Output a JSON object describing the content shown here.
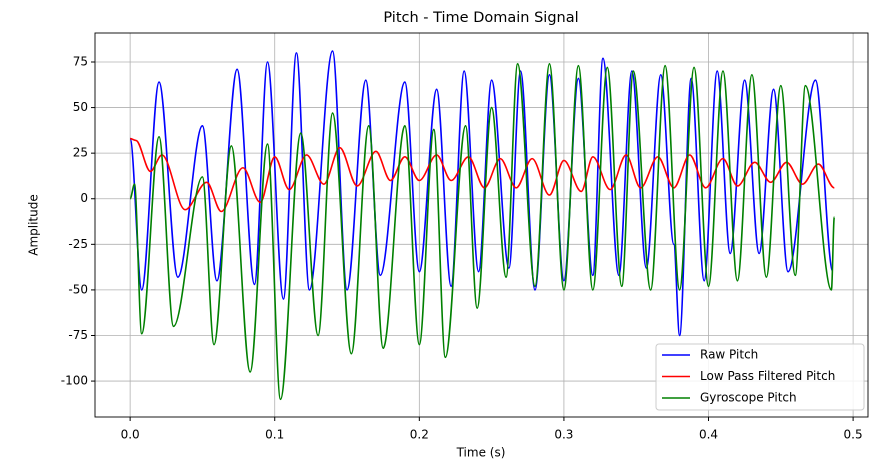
{
  "chart_data": {
    "type": "line",
    "title": "Pitch - Time Domain Signal",
    "xlabel": "Time (s)",
    "ylabel": "Amplitude",
    "xlim": [
      -0.0243,
      0.5103
    ],
    "ylim": [
      -119.7,
      90.9
    ],
    "xticks": [
      {
        "value": 0,
        "label": "0.0"
      },
      0.1,
      0.2,
      0.3,
      0.4,
      0.5
    ],
    "yticks": [
      -100,
      -75,
      -50,
      -25,
      0,
      25,
      50,
      75
    ],
    "grid": true,
    "legend": "lower right",
    "series": [
      {
        "name": "Raw Pitch",
        "color": "#0000ff",
        "x": [
          0,
          0.008,
          0.02,
          0.033,
          0.05,
          0.06,
          0.074,
          0.086,
          0.095,
          0.106,
          0.115,
          0.124,
          0.14,
          0.15,
          0.163,
          0.173,
          0.19,
          0.2,
          0.212,
          0.222,
          0.231,
          0.241,
          0.25,
          0.262,
          0.27,
          0.28,
          0.29,
          0.3,
          0.31,
          0.32,
          0.327,
          0.338,
          0.347,
          0.357,
          0.367,
          0.376,
          0.38,
          0.388,
          0.397,
          0.406,
          0.415,
          0.425,
          0.435,
          0.445,
          0.455,
          0.474,
          0.486
        ],
        "values": [
          33,
          -50,
          64,
          -43,
          40,
          -45,
          71,
          -47,
          75,
          -55,
          80,
          -50,
          81,
          -50,
          65,
          -42,
          64,
          -40,
          60,
          -48,
          70,
          -40,
          65,
          -38,
          70,
          -50,
          68,
          -45,
          66,
          -42,
          77,
          -42,
          70,
          -38,
          68,
          -25,
          -75,
          66,
          -45,
          70,
          -30,
          65,
          -30,
          60,
          -40,
          65,
          -40
        ]
      },
      {
        "name": "Low Pass Filtered Pitch",
        "color": "#ff0000",
        "x": [
          0,
          0.004,
          0.014,
          0.022,
          0.038,
          0.053,
          0.063,
          0.078,
          0.09,
          0.1,
          0.11,
          0.122,
          0.134,
          0.145,
          0.157,
          0.17,
          0.18,
          0.19,
          0.2,
          0.212,
          0.222,
          0.234,
          0.245,
          0.256,
          0.267,
          0.278,
          0.29,
          0.3,
          0.312,
          0.32,
          0.332,
          0.343,
          0.353,
          0.365,
          0.376,
          0.387,
          0.398,
          0.41,
          0.42,
          0.432,
          0.443,
          0.454,
          0.465,
          0.476,
          0.487
        ],
        "values": [
          33,
          32,
          15,
          24,
          -6,
          9,
          -7,
          17,
          -2,
          23,
          5,
          24,
          8,
          28,
          7,
          26,
          10,
          23,
          10,
          24,
          10,
          23,
          6,
          22,
          6,
          22,
          2,
          21,
          4,
          23,
          5,
          24,
          6,
          23,
          6,
          24,
          6,
          22,
          7,
          20,
          9,
          20,
          8,
          19,
          6
        ]
      },
      {
        "name": "Gyroscope Pitch",
        "color": "#008000",
        "x": [
          0,
          0.003,
          0.008,
          0.02,
          0.03,
          0.05,
          0.058,
          0.07,
          0.083,
          0.095,
          0.104,
          0.118,
          0.13,
          0.14,
          0.153,
          0.165,
          0.175,
          0.19,
          0.2,
          0.21,
          0.218,
          0.232,
          0.24,
          0.25,
          0.26,
          0.268,
          0.28,
          0.29,
          0.3,
          0.31,
          0.32,
          0.33,
          0.34,
          0.348,
          0.36,
          0.37,
          0.38,
          0.39,
          0.4,
          0.41,
          0.42,
          0.43,
          0.44,
          0.45,
          0.46,
          0.467,
          0.485,
          0.487
        ],
        "values": [
          0,
          8,
          -74,
          34,
          -70,
          12,
          -80,
          29,
          -95,
          30,
          -110,
          36,
          -75,
          47,
          -85,
          40,
          -82,
          40,
          -80,
          38,
          -87,
          40,
          -60,
          50,
          -43,
          74,
          -48,
          74,
          -50,
          73,
          -50,
          72,
          -48,
          70,
          -50,
          73,
          -50,
          72,
          -48,
          70,
          -45,
          68,
          -43,
          62,
          -42,
          62,
          -50,
          -10
        ]
      }
    ]
  }
}
